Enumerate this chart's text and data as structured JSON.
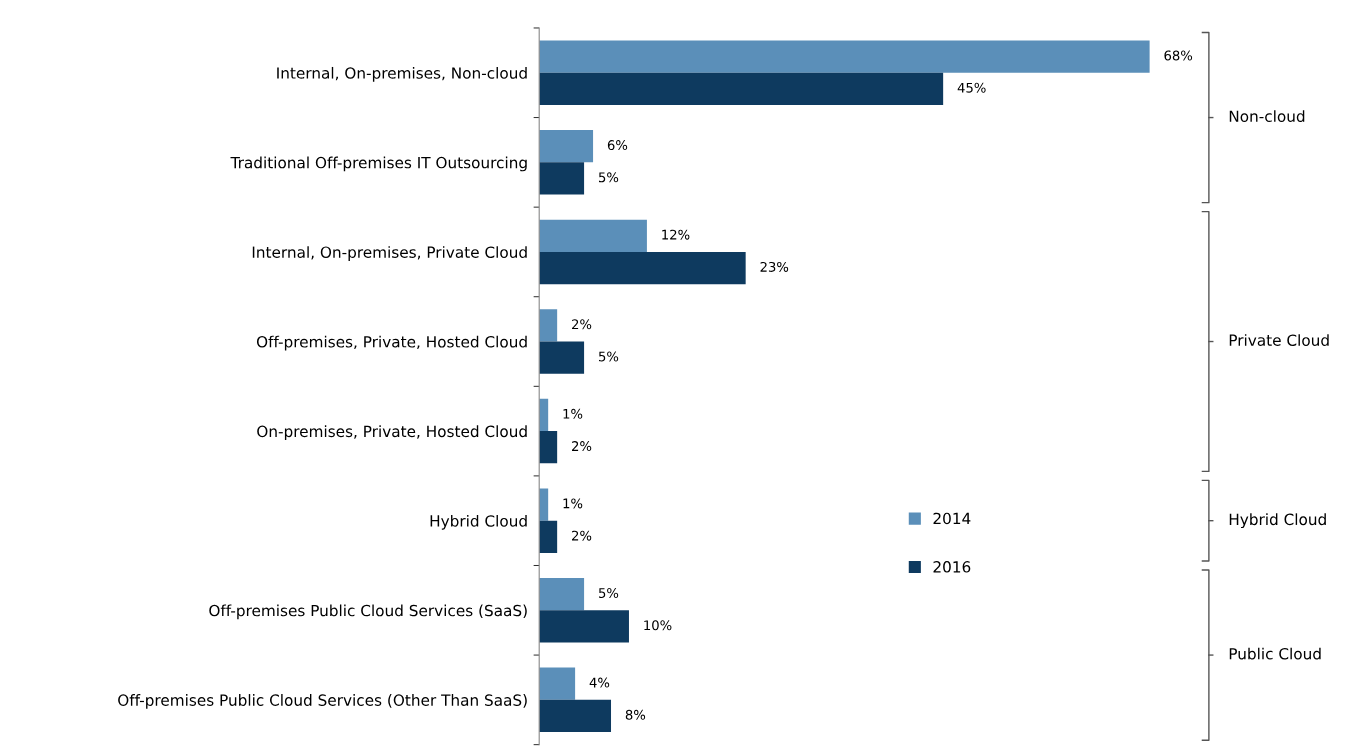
{
  "chart_data": {
    "type": "bar",
    "orientation": "horizontal",
    "categories": [
      "Internal, On-premises, Non-cloud",
      "Traditional Off-premises IT Outsourcing",
      "Internal, On-premises, Private Cloud",
      "Off-premises, Private, Hosted Cloud",
      "On-premises, Private, Hosted Cloud",
      "Hybrid Cloud",
      "Off-premises Public Cloud Services (SaaS)",
      "Off-premises Public Cloud Services (Other Than SaaS)"
    ],
    "series": [
      {
        "name": "2014",
        "color": "#5b8fb9",
        "values": [
          68,
          6,
          12,
          2,
          1,
          1,
          5,
          4
        ],
        "value_labels": [
          "68%",
          "6%",
          "12%",
          "2%",
          "1%",
          "1%",
          "5%",
          "4%"
        ]
      },
      {
        "name": "2016",
        "color": "#0e3a5f",
        "values": [
          45,
          5,
          23,
          5,
          2,
          2,
          10,
          8
        ],
        "value_labels": [
          "45%",
          "5%",
          "23%",
          "5%",
          "2%",
          "2%",
          "10%",
          "8%"
        ]
      }
    ],
    "annotations": [
      "Non-cloud",
      "Private Cloud",
      "Hybrid Cloud",
      "Public Cloud"
    ],
    "legend": "center",
    "grid": false
  }
}
